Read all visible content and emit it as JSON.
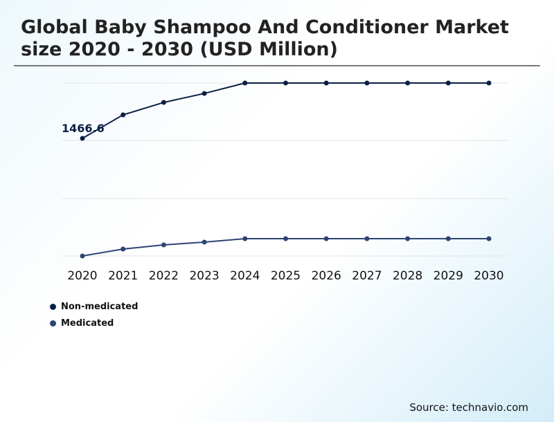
{
  "title": "Global Baby Shampoo And Conditioner Market size 2020 - 2030 (USD Million)",
  "source": "Source: technavio.com",
  "chart_data": {
    "type": "line",
    "title": "Global Baby Shampoo And Conditioner Market size 2020 - 2030 (USD Million)",
    "categories": [
      "2020",
      "2021",
      "2022",
      "2023",
      "2024",
      "2025",
      "2026",
      "2027",
      "2028",
      "2029",
      "2030"
    ],
    "series": [
      {
        "name": "Non-medicated",
        "color": "#0b1e45",
        "values": [
          1466.6,
          1760,
          1915,
          2027,
          2157,
          2157,
          2157,
          2157,
          2157,
          2157,
          2157
        ]
      },
      {
        "name": "Medicated",
        "color": "#2c4373",
        "values": [
          0,
          86,
          138,
          173,
          216,
          216,
          216,
          216,
          216,
          216,
          216
        ]
      }
    ],
    "data_labels": [
      {
        "series": 0,
        "index": 0,
        "text": "1466.6"
      }
    ],
    "ylim": [
      0,
      2157
    ],
    "grid": true,
    "legend": "bottom-left"
  }
}
